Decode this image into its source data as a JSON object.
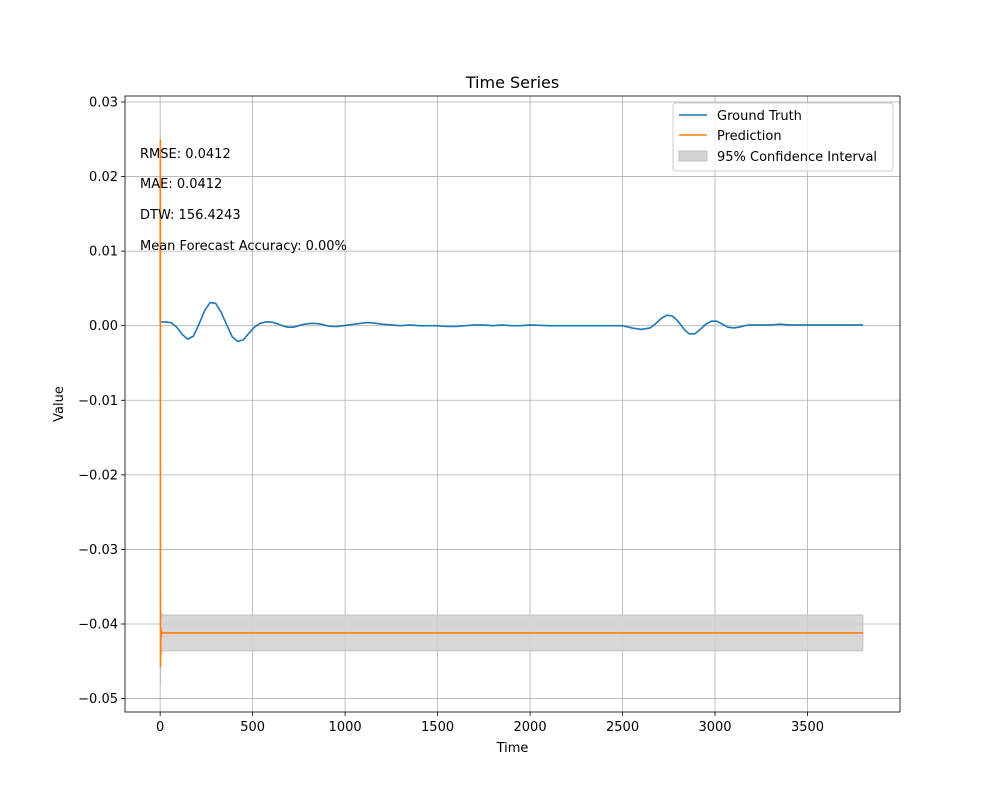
{
  "chart_data": {
    "type": "line",
    "title": "Time Series",
    "xlabel": "Time",
    "ylabel": "Value",
    "xlim": [
      -190,
      4000
    ],
    "ylim": [
      -0.0518,
      0.0308
    ],
    "x_ticks": [
      0,
      500,
      1000,
      1500,
      2000,
      2500,
      3000,
      3500
    ],
    "x_tick_labels": [
      "0",
      "500",
      "1000",
      "1500",
      "2000",
      "2500",
      "3000",
      "3500"
    ],
    "y_ticks": [
      -0.05,
      -0.04,
      -0.03,
      -0.02,
      -0.01,
      0.0,
      0.01,
      0.02,
      0.03
    ],
    "y_tick_labels": [
      "−0.05",
      "−0.04",
      "−0.03",
      "−0.02",
      "−0.01",
      "0.00",
      "0.01",
      "0.02",
      "0.03"
    ],
    "grid": true,
    "legend_position": "top-right",
    "colors": {
      "ground_truth": "#1f77b4",
      "prediction": "#ff7f0e",
      "confidence": "#d3d3d3",
      "grid": "#b0b0b0"
    },
    "series": [
      {
        "name": "Ground Truth",
        "x": [
          0,
          30,
          60,
          90,
          120,
          150,
          180,
          210,
          240,
          270,
          300,
          330,
          360,
          390,
          420,
          450,
          480,
          510,
          540,
          570,
          600,
          630,
          660,
          690,
          720,
          750,
          780,
          810,
          840,
          870,
          900,
          930,
          960,
          990,
          1020,
          1050,
          1080,
          1110,
          1140,
          1170,
          1200,
          1250,
          1300,
          1350,
          1400,
          1450,
          1500,
          1550,
          1600,
          1650,
          1700,
          1750,
          1800,
          1850,
          1900,
          1950,
          2000,
          2100,
          2200,
          2300,
          2400,
          2500,
          2550,
          2600,
          2650,
          2680,
          2710,
          2740,
          2770,
          2800,
          2830,
          2860,
          2890,
          2920,
          2950,
          2980,
          3010,
          3040,
          3070,
          3100,
          3130,
          3160,
          3190,
          3220,
          3250,
          3300,
          3350,
          3400,
          3500,
          3600,
          3700,
          3800
        ],
        "values": [
          0.0005,
          0.0005,
          0.0004,
          -0.0002,
          -0.0012,
          -0.0018,
          -0.0014,
          0.0002,
          0.002,
          0.0031,
          0.003,
          0.0018,
          0.0001,
          -0.0015,
          -0.0021,
          -0.0019,
          -0.001,
          -0.0002,
          0.0003,
          0.0005,
          0.0005,
          0.0003,
          0.0,
          -0.0002,
          -0.0002,
          0.0,
          0.0002,
          0.0003,
          0.0003,
          0.0002,
          0.0,
          -0.0001,
          -0.0001,
          0.0,
          0.0001,
          0.0002,
          0.0003,
          0.0004,
          0.0004,
          0.0003,
          0.0002,
          0.0001,
          0.0,
          0.0001,
          0.0,
          0.0,
          0.0,
          -0.0001,
          -0.0001,
          0.0,
          0.0001,
          0.0001,
          0.0,
          0.0001,
          0.0,
          0.0,
          0.0001,
          0.0,
          0.0,
          0.0,
          0.0,
          0.0,
          -0.0003,
          -0.0005,
          -0.0003,
          0.0003,
          0.001,
          0.0014,
          0.0013,
          0.0006,
          -0.0004,
          -0.0011,
          -0.0011,
          -0.0005,
          0.0002,
          0.0006,
          0.0006,
          0.0002,
          -0.0002,
          -0.0003,
          -0.0002,
          0.0,
          0.0001,
          0.0001,
          0.0001,
          0.0001,
          0.0002,
          0.0001,
          0.0001,
          0.0001,
          0.0001,
          0.0001
        ]
      },
      {
        "name": "Prediction",
        "x": [
          0,
          1,
          2,
          4,
          6,
          8,
          10,
          12,
          20,
          3800
        ],
        "values": [
          0.0005,
          0.0249,
          -0.0457,
          -0.0405,
          -0.0417,
          -0.041,
          -0.0412,
          -0.0412,
          -0.0412,
          -0.0412
        ]
      }
    ],
    "confidence_interval": {
      "name": "95% Confidence Interval",
      "x": [
        0,
        1,
        2,
        4,
        6,
        8,
        10,
        12,
        20,
        3800
      ],
      "upper": [
        0.003,
        0.0274,
        -0.0433,
        -0.038,
        -0.0392,
        -0.0385,
        -0.0387,
        -0.0388,
        -0.0388,
        -0.0388
      ],
      "lower": [
        -0.002,
        0.0224,
        -0.0482,
        -0.043,
        -0.0442,
        -0.0435,
        -0.0437,
        -0.0436,
        -0.0436,
        -0.0436
      ]
    },
    "annotations": [
      "RMSE: 0.0412",
      "MAE: 0.0412",
      "DTW: 156.4243",
      "Mean Forecast Accuracy: 0.00%"
    ]
  }
}
